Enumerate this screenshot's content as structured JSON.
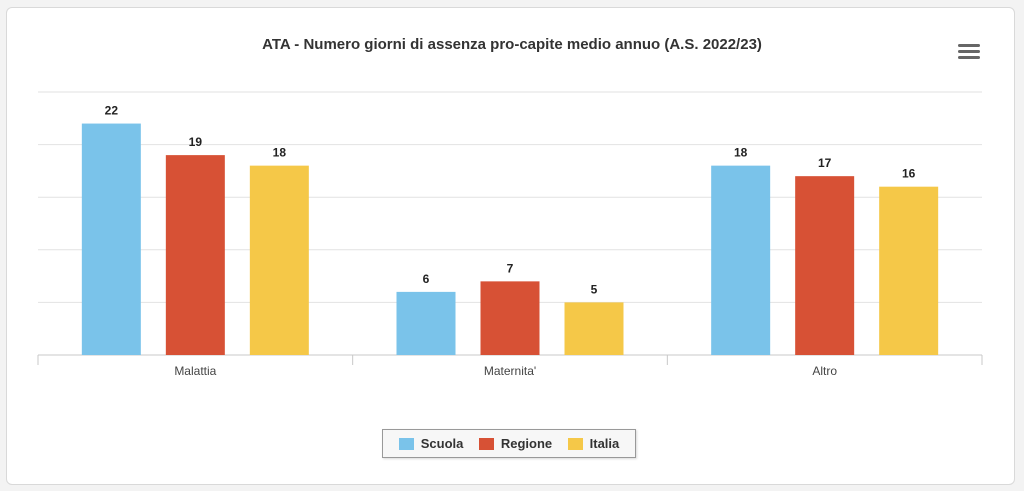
{
  "chart_data": {
    "type": "bar",
    "title": "ATA - Numero giorni di assenza pro-capite medio annuo (A.S. 2022/23)",
    "categories": [
      "Malattia",
      "Maternita'",
      "Altro"
    ],
    "series": [
      {
        "name": "Scuola",
        "color": "#7ac3ea",
        "values": [
          22,
          6,
          18
        ]
      },
      {
        "name": "Regione",
        "color": "#d75135",
        "values": [
          19,
          7,
          17
        ]
      },
      {
        "name": "Italia",
        "color": "#f5c848",
        "values": [
          18,
          5,
          16
        ]
      }
    ],
    "ylim": [
      0,
      25
    ],
    "grid": true,
    "xlabel": "",
    "ylabel": "",
    "legend": "bottom-center"
  },
  "menu_icon": "hamburger-menu-icon"
}
